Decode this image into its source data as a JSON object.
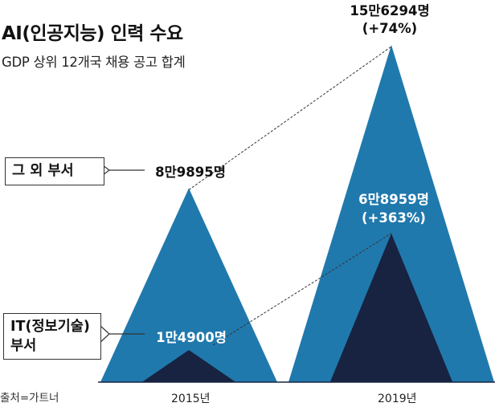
{
  "title": "AI(인공지능) 인력 수요",
  "subtitle": "GDP 상위 12개국 채용 공고 합계",
  "source": "출처=가트너",
  "colors": {
    "other": "#2079ad",
    "it": "#172341",
    "line": "#333333"
  },
  "chart_data": {
    "type": "area",
    "categories": [
      "2015년",
      "2019년"
    ],
    "series": [
      {
        "name": "IT(정보기술) 부서",
        "values": [
          14900,
          68959
        ],
        "labels": [
          "1만4900명",
          "6만8959명"
        ],
        "change": [
          "",
          "(+363%)"
        ]
      },
      {
        "name": "그 외 부서",
        "values": [
          89895,
          156294
        ],
        "labels": [
          "8만9895명",
          "15만6294명"
        ],
        "change": [
          "",
          "(+74%)"
        ]
      }
    ],
    "stacked": false,
    "grid": false,
    "legend": "left callouts"
  }
}
